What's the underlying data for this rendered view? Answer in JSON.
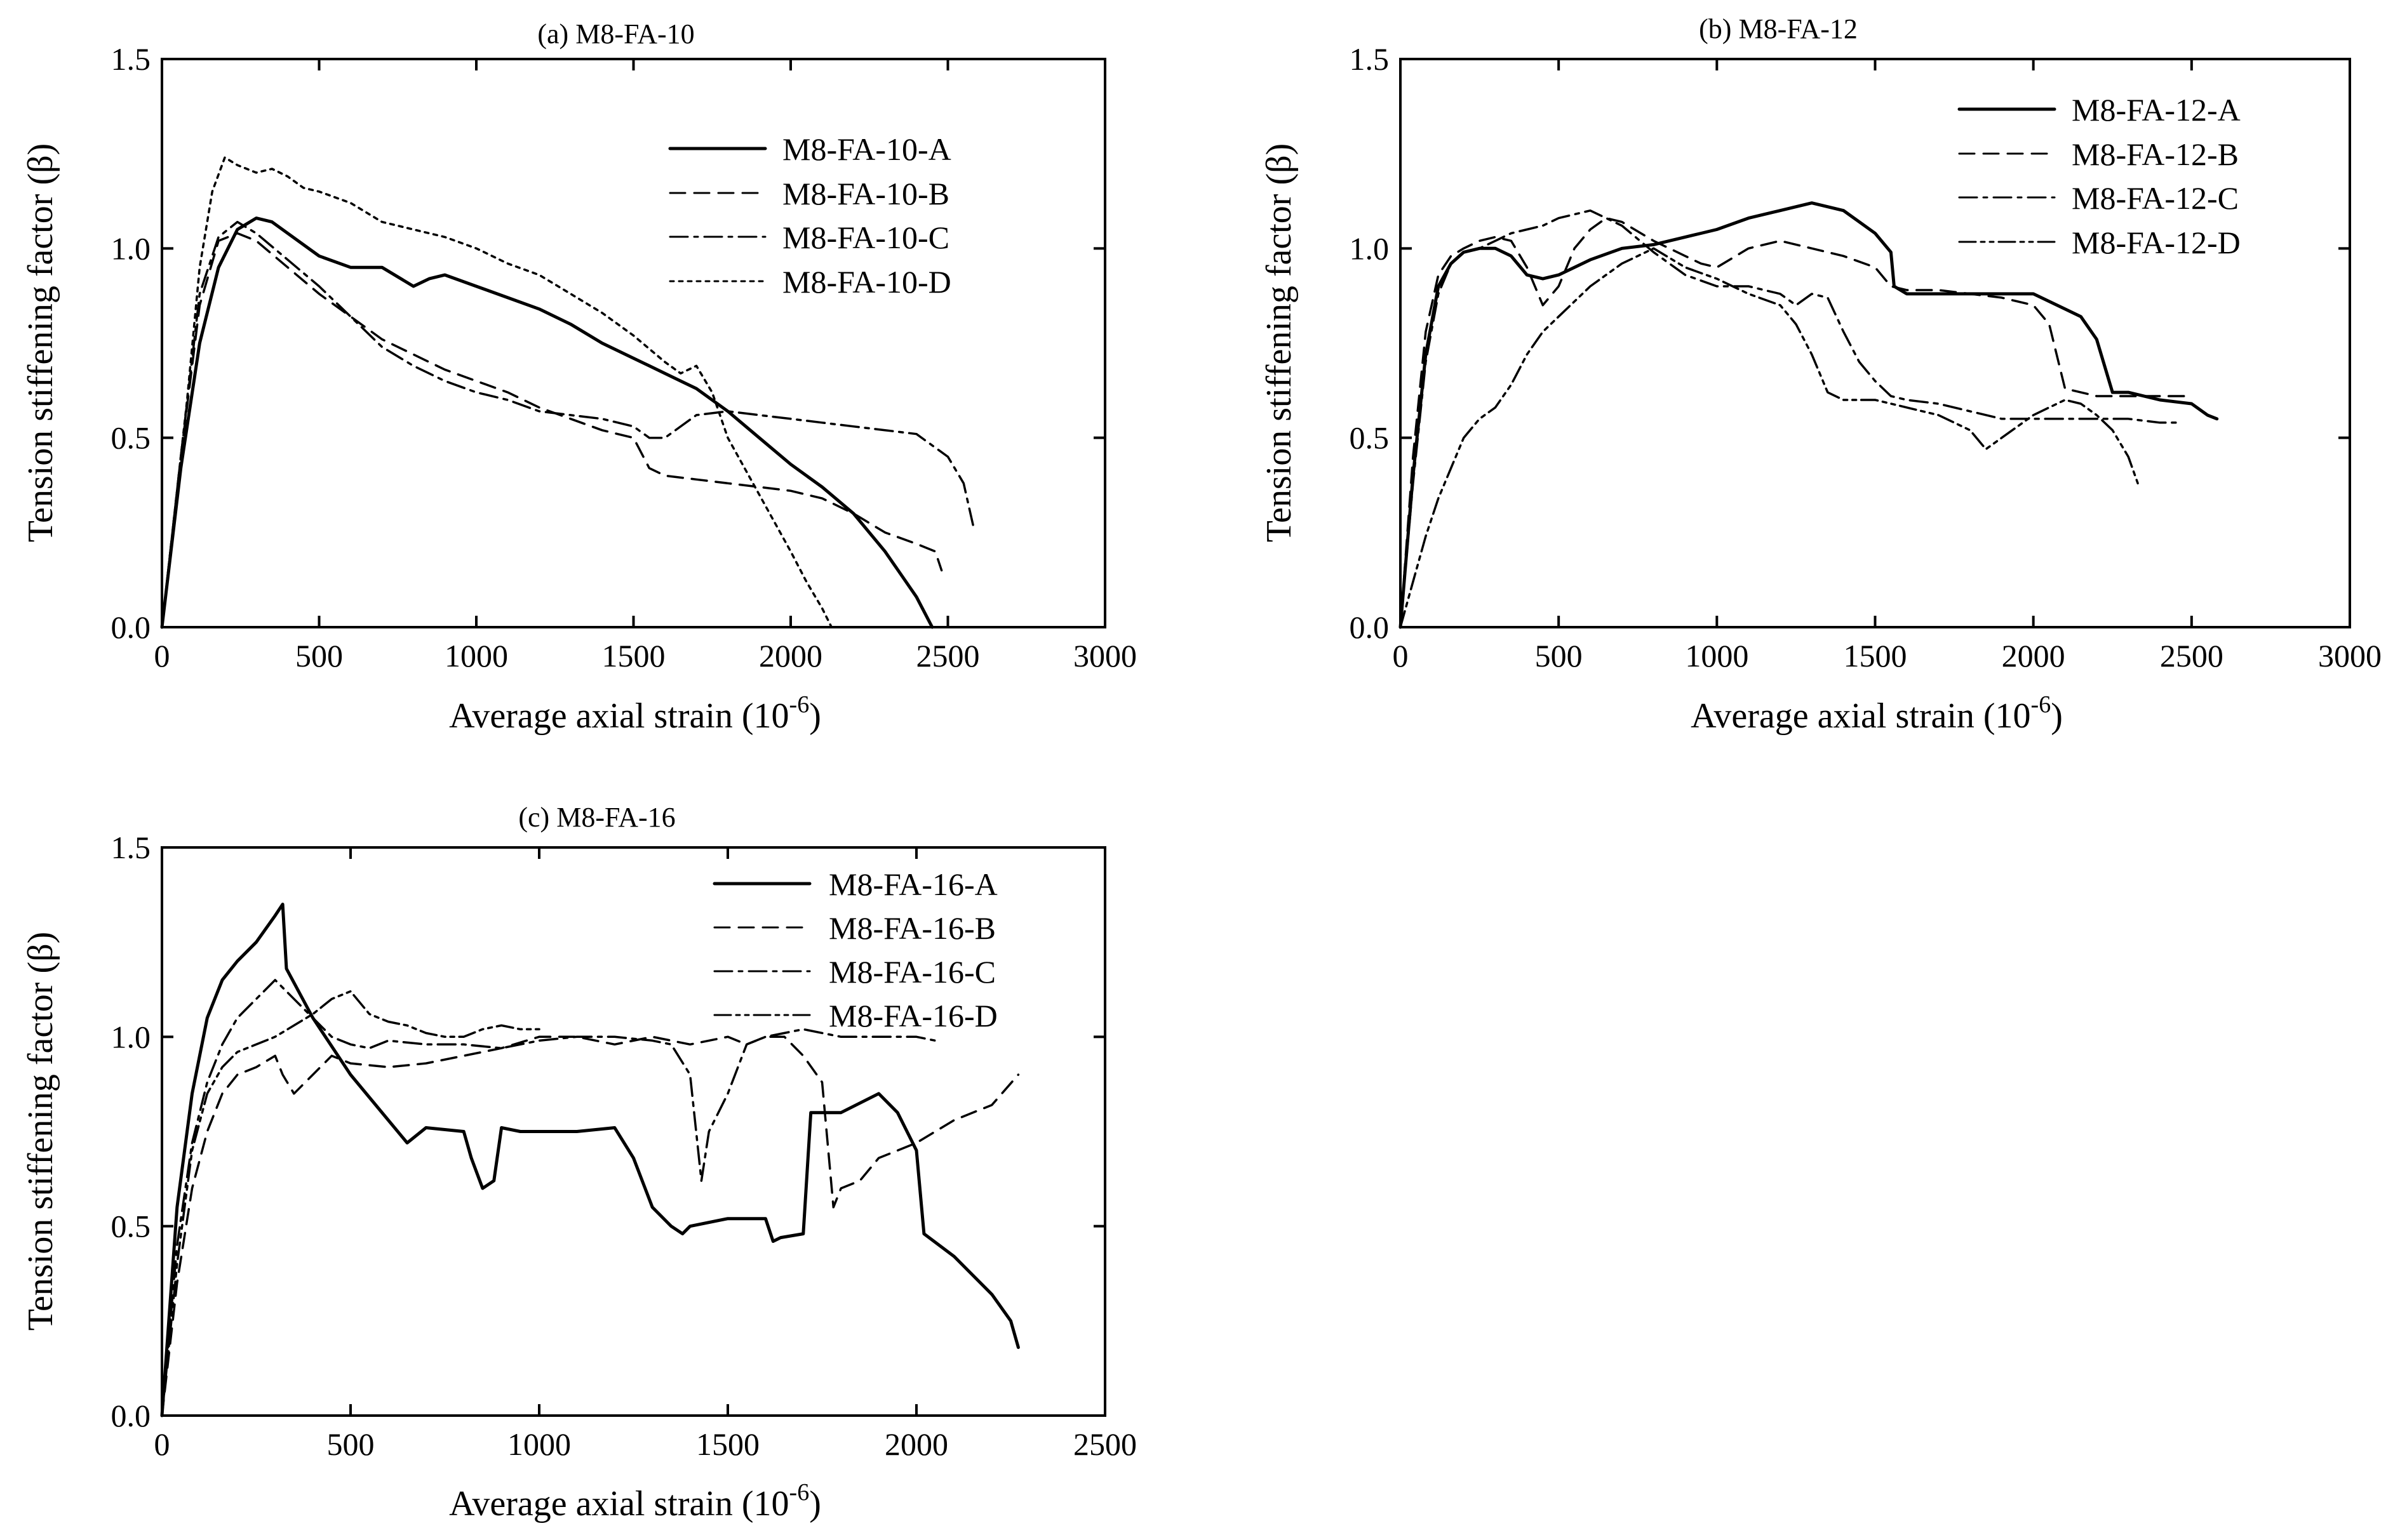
{
  "chart_data": [
    {
      "type": "line",
      "title": "(a) M8-FA-10",
      "xlabel": "Average axial strain",
      "xlabel_unit_base": "(10",
      "xlabel_unit_exp": "-6",
      "xlabel_unit_close": ")",
      "ylabel": "Tension stiffening factor (β)",
      "xlim": [
        0,
        3000
      ],
      "ylim": [
        0,
        1.5
      ],
      "xticks": [
        0,
        500,
        1000,
        1500,
        2000,
        2500,
        3000
      ],
      "xtick_labels": [
        "0",
        "500",
        "1000",
        "1500",
        "2000",
        "2500",
        "3000"
      ],
      "yticks": [
        0,
        0.5,
        1.0,
        1.5
      ],
      "ytick_labels": [
        "0.0",
        "0.5",
        "1.0",
        "1.5"
      ],
      "legend_position": "top-right",
      "series": [
        {
          "name": "M8-FA-10-A",
          "dash": "solid",
          "x": [
            0,
            60,
            120,
            180,
            240,
            300,
            350,
            400,
            500,
            600,
            700,
            800,
            850,
            900,
            1000,
            1100,
            1200,
            1300,
            1400,
            1500,
            1550,
            1600,
            1650,
            1700,
            1800,
            1900,
            2000,
            2100,
            2200,
            2300,
            2350,
            2400,
            2450
          ],
          "y": [
            0,
            0.42,
            0.75,
            0.95,
            1.05,
            1.08,
            1.07,
            1.04,
            0.98,
            0.95,
            0.95,
            0.9,
            0.92,
            0.93,
            0.9,
            0.87,
            0.84,
            0.8,
            0.75,
            0.71,
            0.69,
            0.67,
            0.65,
            0.63,
            0.57,
            0.5,
            0.43,
            0.37,
            0.3,
            0.2,
            0.14,
            0.08,
            0
          ]
        },
        {
          "name": "M8-FA-10-B",
          "dash": "dashed",
          "x": [
            0,
            60,
            120,
            180,
            240,
            300,
            400,
            500,
            600,
            700,
            800,
            900,
            1000,
            1100,
            1200,
            1300,
            1400,
            1500,
            1550,
            1600,
            1700,
            1800,
            1900,
            2000,
            2100,
            2200,
            2300,
            2400,
            2460,
            2480
          ],
          "y": [
            0,
            0.45,
            0.85,
            1.02,
            1.04,
            1.02,
            0.95,
            0.88,
            0.82,
            0.76,
            0.72,
            0.68,
            0.65,
            0.62,
            0.58,
            0.55,
            0.52,
            0.5,
            0.42,
            0.4,
            0.39,
            0.38,
            0.37,
            0.36,
            0.34,
            0.3,
            0.25,
            0.22,
            0.2,
            0.15
          ]
        },
        {
          "name": "M8-FA-10-C",
          "dash": "dashdot",
          "x": [
            0,
            60,
            120,
            180,
            240,
            300,
            400,
            500,
            600,
            700,
            800,
            900,
            1000,
            1100,
            1200,
            1300,
            1400,
            1500,
            1550,
            1600,
            1700,
            1800,
            1900,
            2000,
            2100,
            2200,
            2300,
            2400,
            2500,
            2550,
            2580
          ],
          "y": [
            0,
            0.45,
            0.88,
            1.03,
            1.07,
            1.04,
            0.97,
            0.9,
            0.82,
            0.74,
            0.69,
            0.65,
            0.62,
            0.6,
            0.57,
            0.56,
            0.55,
            0.53,
            0.5,
            0.5,
            0.56,
            0.57,
            0.56,
            0.55,
            0.54,
            0.53,
            0.52,
            0.51,
            0.45,
            0.38,
            0.27
          ]
        },
        {
          "name": "M8-FA-10-D",
          "dash": "dotted",
          "x": [
            0,
            40,
            80,
            120,
            160,
            200,
            240,
            300,
            350,
            400,
            450,
            500,
            600,
            700,
            800,
            900,
            1000,
            1100,
            1200,
            1300,
            1400,
            1500,
            1600,
            1650,
            1700,
            1750,
            1800,
            1900,
            2000,
            2050,
            2100,
            2130
          ],
          "y": [
            0,
            0.3,
            0.6,
            0.95,
            1.15,
            1.24,
            1.22,
            1.2,
            1.21,
            1.19,
            1.16,
            1.15,
            1.12,
            1.07,
            1.05,
            1.03,
            1.0,
            0.96,
            0.93,
            0.88,
            0.83,
            0.77,
            0.7,
            0.67,
            0.69,
            0.62,
            0.5,
            0.35,
            0.2,
            0.12,
            0.05,
            0
          ]
        }
      ]
    },
    {
      "type": "line",
      "title": "(b) M8-FA-12",
      "xlabel": "Average axial strain",
      "xlabel_unit_base": "(10",
      "xlabel_unit_exp": "-6",
      "xlabel_unit_close": ")",
      "ylabel": "Tension stiffening factor (β)",
      "xlim": [
        0,
        3000
      ],
      "ylim": [
        0,
        1.5
      ],
      "xticks": [
        0,
        500,
        1000,
        1500,
        2000,
        2500,
        3000
      ],
      "xtick_labels": [
        "0",
        "500",
        "1000",
        "1500",
        "2000",
        "2500",
        "3000"
      ],
      "yticks": [
        0,
        0.5,
        1.0,
        1.5
      ],
      "ytick_labels": [
        "0.0",
        "0.5",
        "1.0",
        "1.5"
      ],
      "legend_position": "top-right",
      "series": [
        {
          "name": "M8-FA-12-A",
          "dash": "solid",
          "x": [
            0,
            40,
            80,
            120,
            160,
            200,
            250,
            300,
            350,
            400,
            450,
            500,
            600,
            700,
            800,
            900,
            950,
            1000,
            1100,
            1200,
            1300,
            1400,
            1500,
            1550,
            1560,
            1600,
            1700,
            1800,
            1900,
            1950,
            2000,
            2100,
            2150,
            2200,
            2250,
            2300,
            2400,
            2500,
            2550,
            2580
          ],
          "y": [
            0,
            0.4,
            0.72,
            0.9,
            0.96,
            0.99,
            1.0,
            1.0,
            0.98,
            0.93,
            0.92,
            0.93,
            0.97,
            1.0,
            1.01,
            1.03,
            1.04,
            1.05,
            1.08,
            1.1,
            1.12,
            1.1,
            1.04,
            0.99,
            0.9,
            0.88,
            0.88,
            0.88,
            0.88,
            0.88,
            0.88,
            0.84,
            0.82,
            0.76,
            0.62,
            0.62,
            0.6,
            0.59,
            0.56,
            0.55
          ]
        },
        {
          "name": "M8-FA-12-B",
          "dash": "dashed",
          "x": [
            0,
            40,
            80,
            120,
            160,
            200,
            250,
            300,
            350,
            400,
            450,
            500,
            550,
            600,
            650,
            700,
            800,
            900,
            950,
            1000,
            1100,
            1200,
            1300,
            1400,
            1500,
            1550,
            1600,
            1700,
            1800,
            1900,
            2000,
            2050,
            2100,
            2200,
            2300,
            2400,
            2500
          ],
          "y": [
            0,
            0.45,
            0.78,
            0.93,
            0.98,
            1.0,
            1.02,
            1.03,
            1.02,
            0.95,
            0.85,
            0.9,
            1.0,
            1.05,
            1.08,
            1.07,
            1.02,
            0.98,
            0.96,
            0.95,
            1.0,
            1.02,
            1.0,
            0.98,
            0.95,
            0.9,
            0.89,
            0.89,
            0.88,
            0.87,
            0.85,
            0.8,
            0.63,
            0.61,
            0.61,
            0.61,
            0.61
          ]
        },
        {
          "name": "M8-FA-12-C",
          "dash": "dashdot",
          "x": [
            0,
            40,
            80,
            120,
            160,
            200,
            250,
            300,
            350,
            400,
            450,
            500,
            550,
            600,
            700,
            800,
            900,
            1000,
            1100,
            1200,
            1250,
            1300,
            1350,
            1400,
            1450,
            1500,
            1550,
            1600,
            1700,
            1800,
            1900,
            2000,
            2100,
            2200,
            2300,
            2400,
            2450
          ],
          "y": [
            0,
            0.38,
            0.7,
            0.88,
            0.96,
            0.99,
            1.0,
            1.02,
            1.04,
            1.05,
            1.06,
            1.08,
            1.09,
            1.1,
            1.06,
            0.99,
            0.93,
            0.9,
            0.9,
            0.88,
            0.85,
            0.88,
            0.87,
            0.78,
            0.7,
            0.65,
            0.61,
            0.6,
            0.59,
            0.57,
            0.55,
            0.55,
            0.55,
            0.55,
            0.55,
            0.54,
            0.54
          ]
        },
        {
          "name": "M8-FA-12-D",
          "dash": "dashdotdot",
          "x": [
            0,
            40,
            80,
            120,
            160,
            200,
            250,
            300,
            350,
            400,
            450,
            500,
            550,
            600,
            650,
            700,
            750,
            800,
            900,
            1000,
            1100,
            1200,
            1250,
            1300,
            1350,
            1400,
            1500,
            1600,
            1700,
            1800,
            1850,
            1900,
            1950,
            2000,
            2050,
            2100,
            2150,
            2200,
            2250,
            2300,
            2330
          ],
          "y": [
            0,
            0.12,
            0.24,
            0.34,
            0.42,
            0.5,
            0.55,
            0.58,
            0.64,
            0.72,
            0.78,
            0.82,
            0.86,
            0.9,
            0.93,
            0.96,
            0.98,
            1.0,
            0.95,
            0.92,
            0.88,
            0.85,
            0.8,
            0.72,
            0.62,
            0.6,
            0.6,
            0.58,
            0.56,
            0.52,
            0.47,
            0.5,
            0.53,
            0.56,
            0.58,
            0.6,
            0.59,
            0.56,
            0.52,
            0.45,
            0.38
          ]
        }
      ]
    },
    {
      "type": "line",
      "title": "(c) M8-FA-16",
      "xlabel": "Average axial strain",
      "xlabel_unit_base": "(10",
      "xlabel_unit_exp": "-6",
      "xlabel_unit_close": ")",
      "ylabel": "Tension stiffening factor (β)",
      "xlim": [
        0,
        2500
      ],
      "ylim": [
        0,
        1.5
      ],
      "xticks": [
        0,
        500,
        1000,
        1500,
        2000,
        2500
      ],
      "xtick_labels": [
        "0",
        "500",
        "1000",
        "1500",
        "2000",
        "2500"
      ],
      "yticks": [
        0,
        0.5,
        1.0,
        1.5
      ],
      "ytick_labels": [
        "0.0",
        "0.5",
        "1.0",
        "1.5"
      ],
      "legend_position": "top-right",
      "series": [
        {
          "name": "M8-FA-16-A",
          "dash": "solid",
          "x": [
            0,
            40,
            80,
            120,
            160,
            200,
            250,
            300,
            320,
            330,
            400,
            500,
            600,
            650,
            700,
            800,
            820,
            850,
            880,
            900,
            950,
            1000,
            1100,
            1200,
            1250,
            1300,
            1350,
            1380,
            1400,
            1500,
            1600,
            1620,
            1640,
            1700,
            1720,
            1750,
            1800,
            1900,
            1950,
            2000,
            2020,
            2100,
            2200,
            2250,
            2270
          ],
          "y": [
            0,
            0.55,
            0.85,
            1.05,
            1.15,
            1.2,
            1.25,
            1.32,
            1.35,
            1.18,
            1.05,
            0.9,
            0.78,
            0.72,
            0.76,
            0.75,
            0.68,
            0.6,
            0.62,
            0.76,
            0.75,
            0.75,
            0.75,
            0.76,
            0.68,
            0.55,
            0.5,
            0.48,
            0.5,
            0.52,
            0.52,
            0.46,
            0.47,
            0.48,
            0.8,
            0.8,
            0.8,
            0.85,
            0.8,
            0.7,
            0.48,
            0.42,
            0.32,
            0.25,
            0.18
          ]
        },
        {
          "name": "M8-FA-16-B",
          "dash": "dashed",
          "x": [
            0,
            40,
            80,
            120,
            160,
            200,
            250,
            300,
            320,
            350,
            400,
            450,
            500,
            600,
            700,
            800,
            900,
            1000,
            1100,
            1200,
            1300,
            1400,
            1500,
            1550,
            1600,
            1650,
            1700,
            1750,
            1780,
            1800,
            1850,
            1900,
            2000,
            2100,
            2200,
            2270
          ],
          "y": [
            0,
            0.35,
            0.6,
            0.75,
            0.85,
            0.9,
            0.92,
            0.95,
            0.9,
            0.85,
            0.9,
            0.95,
            0.93,
            0.92,
            0.93,
            0.95,
            0.97,
            1.0,
            1.0,
            0.98,
            1.0,
            0.98,
            1.0,
            0.98,
            1.0,
            1.0,
            0.95,
            0.88,
            0.55,
            0.6,
            0.62,
            0.68,
            0.72,
            0.78,
            0.82,
            0.9
          ]
        },
        {
          "name": "M8-FA-16-C",
          "dash": "dashdot",
          "x": [
            0,
            40,
            80,
            120,
            160,
            200,
            250,
            300,
            350,
            400,
            450,
            500,
            550,
            600,
            700,
            800,
            900,
            1000,
            1100,
            1200,
            1300,
            1350,
            1400,
            1430,
            1450,
            1500,
            1550,
            1600,
            1700,
            1800,
            1900,
            2000,
            2050
          ],
          "y": [
            0,
            0.45,
            0.72,
            0.88,
            0.98,
            1.05,
            1.1,
            1.15,
            1.1,
            1.05,
            1.0,
            0.98,
            0.97,
            0.99,
            0.98,
            0.98,
            0.97,
            0.99,
            1.0,
            1.0,
            0.99,
            0.98,
            0.9,
            0.62,
            0.75,
            0.85,
            0.98,
            1.0,
            1.02,
            1.0,
            1.0,
            1.0,
            0.99
          ]
        },
        {
          "name": "M8-FA-16-D",
          "dash": "dashdotdot",
          "x": [
            0,
            40,
            80,
            120,
            160,
            200,
            250,
            300,
            350,
            400,
            450,
            500,
            550,
            600,
            650,
            700,
            750,
            800,
            850,
            900,
            950,
            1000
          ],
          "y": [
            0,
            0.4,
            0.7,
            0.85,
            0.92,
            0.96,
            0.98,
            1.0,
            1.03,
            1.06,
            1.1,
            1.12,
            1.06,
            1.04,
            1.03,
            1.01,
            1.0,
            1.0,
            1.02,
            1.03,
            1.02,
            1.02
          ]
        }
      ]
    }
  ]
}
